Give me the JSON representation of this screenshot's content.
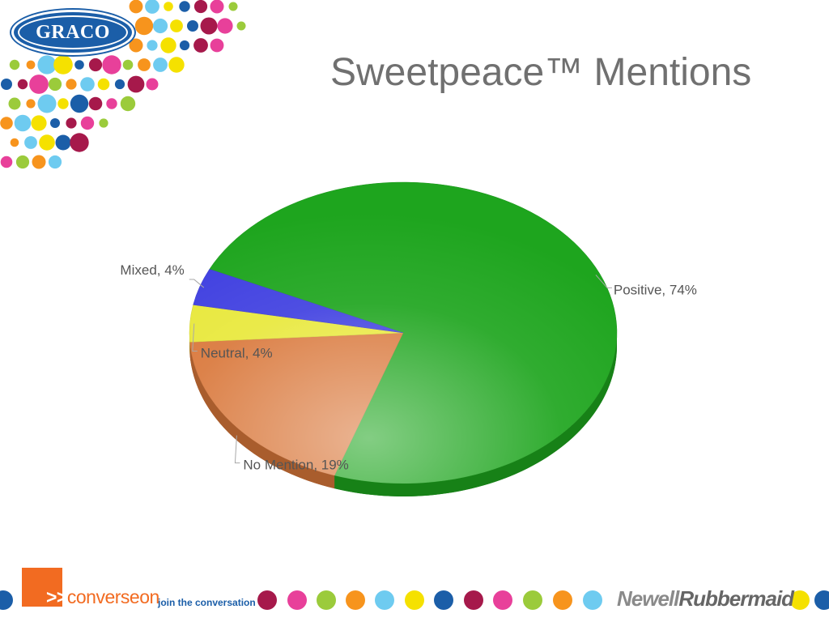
{
  "brand": {
    "graco_logo_text": "GRACO",
    "converseon_text": "converseon",
    "converseon_tagline": "join the conversation",
    "newell_text": "Newell",
    "rubbermaid_text": "Rubbermaid"
  },
  "colors": {
    "positive": "#1ea51e",
    "no_mention": "#d9773a",
    "neutral": "#e8e83a",
    "mixed": "#3f3fe0",
    "dot_palette": [
      "#f7941d",
      "#e8409a",
      "#1b5ea8",
      "#6ecbf0",
      "#9bcb3b",
      "#a6194b",
      "#f5e100"
    ]
  },
  "chart_data": {
    "type": "pie",
    "title": "Sweetpeace™ Mentions",
    "slices": [
      {
        "label": "Positive",
        "value": 74,
        "display": "Positive, 74%"
      },
      {
        "label": "No Mention",
        "value": 19,
        "display": "No Mention, 19%"
      },
      {
        "label": "Neutral",
        "value": 4,
        "display": "Neutral, 4%"
      },
      {
        "label": "Mixed",
        "value": 4,
        "display": "Mixed, 4%"
      }
    ],
    "legend": "none",
    "style": "3d"
  }
}
